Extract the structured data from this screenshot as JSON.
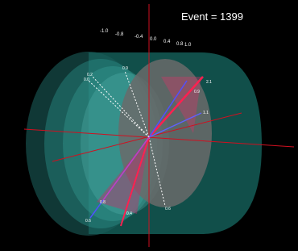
{
  "title": "Event = 1399",
  "axis_labels": [
    "-1.0",
    "-0.8",
    "-0.4",
    "0.0",
    "0.4",
    "0.8",
    "1.0"
  ],
  "track_labels": [
    "2.1",
    "0.9",
    "1.1",
    "0.9",
    "0.2",
    "0.0",
    "0.8",
    "0.6",
    "0.4",
    "0.6"
  ]
}
